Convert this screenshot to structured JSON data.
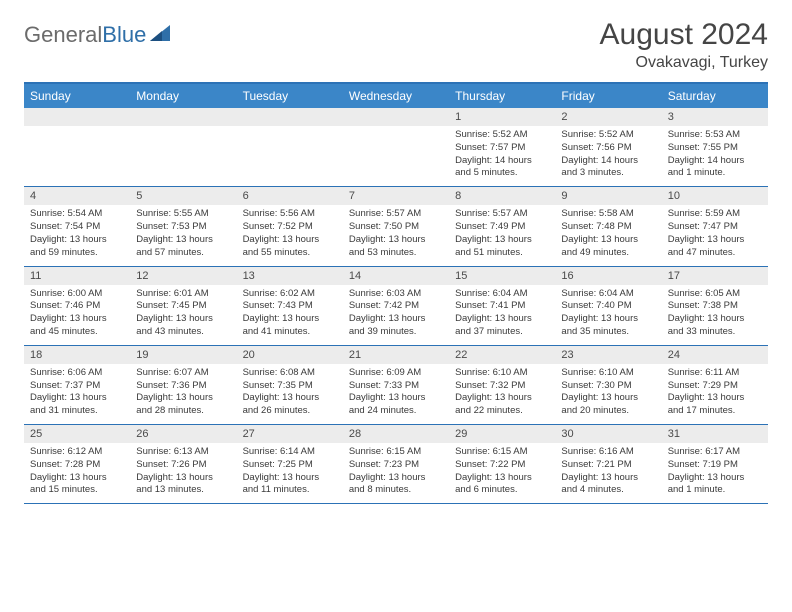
{
  "brand": {
    "part1": "General",
    "part2": "Blue"
  },
  "title": "August 2024",
  "location": "Ovakavagi, Turkey",
  "colors": {
    "header_bar": "#3b86c8",
    "rule": "#2c72b6",
    "daynum_bg": "#ececec",
    "text": "#454545",
    "body_text": "#3a3a3a"
  },
  "day_names": [
    "Sunday",
    "Monday",
    "Tuesday",
    "Wednesday",
    "Thursday",
    "Friday",
    "Saturday"
  ],
  "weeks": [
    [
      null,
      null,
      null,
      null,
      {
        "n": "1",
        "sr": "Sunrise: 5:52 AM",
        "ss": "Sunset: 7:57 PM",
        "dl": "Daylight: 14 hours and 5 minutes."
      },
      {
        "n": "2",
        "sr": "Sunrise: 5:52 AM",
        "ss": "Sunset: 7:56 PM",
        "dl": "Daylight: 14 hours and 3 minutes."
      },
      {
        "n": "3",
        "sr": "Sunrise: 5:53 AM",
        "ss": "Sunset: 7:55 PM",
        "dl": "Daylight: 14 hours and 1 minute."
      }
    ],
    [
      {
        "n": "4",
        "sr": "Sunrise: 5:54 AM",
        "ss": "Sunset: 7:54 PM",
        "dl": "Daylight: 13 hours and 59 minutes."
      },
      {
        "n": "5",
        "sr": "Sunrise: 5:55 AM",
        "ss": "Sunset: 7:53 PM",
        "dl": "Daylight: 13 hours and 57 minutes."
      },
      {
        "n": "6",
        "sr": "Sunrise: 5:56 AM",
        "ss": "Sunset: 7:52 PM",
        "dl": "Daylight: 13 hours and 55 minutes."
      },
      {
        "n": "7",
        "sr": "Sunrise: 5:57 AM",
        "ss": "Sunset: 7:50 PM",
        "dl": "Daylight: 13 hours and 53 minutes."
      },
      {
        "n": "8",
        "sr": "Sunrise: 5:57 AM",
        "ss": "Sunset: 7:49 PM",
        "dl": "Daylight: 13 hours and 51 minutes."
      },
      {
        "n": "9",
        "sr": "Sunrise: 5:58 AM",
        "ss": "Sunset: 7:48 PM",
        "dl": "Daylight: 13 hours and 49 minutes."
      },
      {
        "n": "10",
        "sr": "Sunrise: 5:59 AM",
        "ss": "Sunset: 7:47 PM",
        "dl": "Daylight: 13 hours and 47 minutes."
      }
    ],
    [
      {
        "n": "11",
        "sr": "Sunrise: 6:00 AM",
        "ss": "Sunset: 7:46 PM",
        "dl": "Daylight: 13 hours and 45 minutes."
      },
      {
        "n": "12",
        "sr": "Sunrise: 6:01 AM",
        "ss": "Sunset: 7:45 PM",
        "dl": "Daylight: 13 hours and 43 minutes."
      },
      {
        "n": "13",
        "sr": "Sunrise: 6:02 AM",
        "ss": "Sunset: 7:43 PM",
        "dl": "Daylight: 13 hours and 41 minutes."
      },
      {
        "n": "14",
        "sr": "Sunrise: 6:03 AM",
        "ss": "Sunset: 7:42 PM",
        "dl": "Daylight: 13 hours and 39 minutes."
      },
      {
        "n": "15",
        "sr": "Sunrise: 6:04 AM",
        "ss": "Sunset: 7:41 PM",
        "dl": "Daylight: 13 hours and 37 minutes."
      },
      {
        "n": "16",
        "sr": "Sunrise: 6:04 AM",
        "ss": "Sunset: 7:40 PM",
        "dl": "Daylight: 13 hours and 35 minutes."
      },
      {
        "n": "17",
        "sr": "Sunrise: 6:05 AM",
        "ss": "Sunset: 7:38 PM",
        "dl": "Daylight: 13 hours and 33 minutes."
      }
    ],
    [
      {
        "n": "18",
        "sr": "Sunrise: 6:06 AM",
        "ss": "Sunset: 7:37 PM",
        "dl": "Daylight: 13 hours and 31 minutes."
      },
      {
        "n": "19",
        "sr": "Sunrise: 6:07 AM",
        "ss": "Sunset: 7:36 PM",
        "dl": "Daylight: 13 hours and 28 minutes."
      },
      {
        "n": "20",
        "sr": "Sunrise: 6:08 AM",
        "ss": "Sunset: 7:35 PM",
        "dl": "Daylight: 13 hours and 26 minutes."
      },
      {
        "n": "21",
        "sr": "Sunrise: 6:09 AM",
        "ss": "Sunset: 7:33 PM",
        "dl": "Daylight: 13 hours and 24 minutes."
      },
      {
        "n": "22",
        "sr": "Sunrise: 6:10 AM",
        "ss": "Sunset: 7:32 PM",
        "dl": "Daylight: 13 hours and 22 minutes."
      },
      {
        "n": "23",
        "sr": "Sunrise: 6:10 AM",
        "ss": "Sunset: 7:30 PM",
        "dl": "Daylight: 13 hours and 20 minutes."
      },
      {
        "n": "24",
        "sr": "Sunrise: 6:11 AM",
        "ss": "Sunset: 7:29 PM",
        "dl": "Daylight: 13 hours and 17 minutes."
      }
    ],
    [
      {
        "n": "25",
        "sr": "Sunrise: 6:12 AM",
        "ss": "Sunset: 7:28 PM",
        "dl": "Daylight: 13 hours and 15 minutes."
      },
      {
        "n": "26",
        "sr": "Sunrise: 6:13 AM",
        "ss": "Sunset: 7:26 PM",
        "dl": "Daylight: 13 hours and 13 minutes."
      },
      {
        "n": "27",
        "sr": "Sunrise: 6:14 AM",
        "ss": "Sunset: 7:25 PM",
        "dl": "Daylight: 13 hours and 11 minutes."
      },
      {
        "n": "28",
        "sr": "Sunrise: 6:15 AM",
        "ss": "Sunset: 7:23 PM",
        "dl": "Daylight: 13 hours and 8 minutes."
      },
      {
        "n": "29",
        "sr": "Sunrise: 6:15 AM",
        "ss": "Sunset: 7:22 PM",
        "dl": "Daylight: 13 hours and 6 minutes."
      },
      {
        "n": "30",
        "sr": "Sunrise: 6:16 AM",
        "ss": "Sunset: 7:21 PM",
        "dl": "Daylight: 13 hours and 4 minutes."
      },
      {
        "n": "31",
        "sr": "Sunrise: 6:17 AM",
        "ss": "Sunset: 7:19 PM",
        "dl": "Daylight: 13 hours and 1 minute."
      }
    ]
  ]
}
